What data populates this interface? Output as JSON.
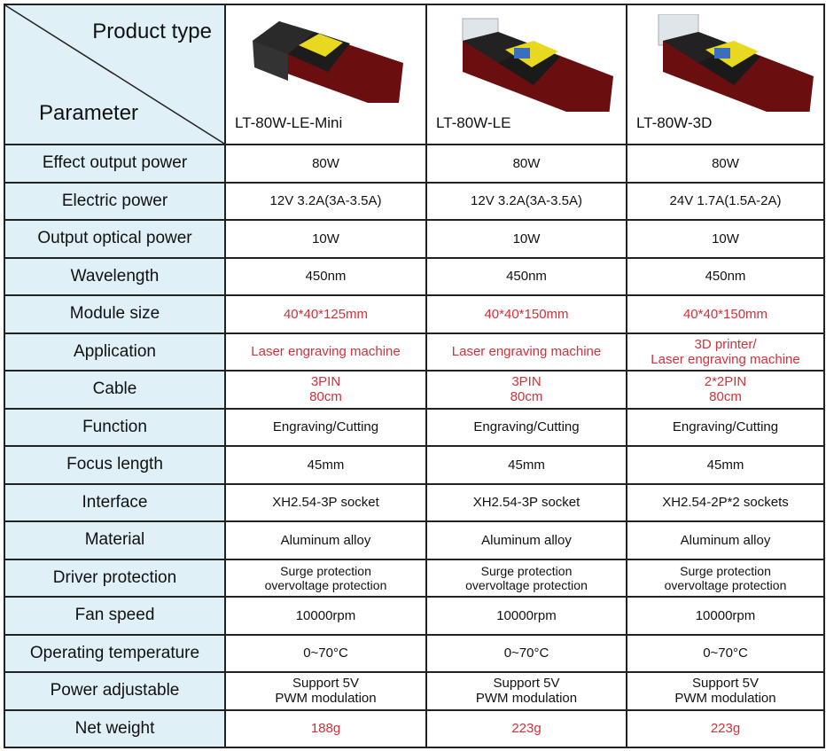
{
  "header": {
    "product_type_label": "Product type",
    "parameter_label": "Parameter"
  },
  "products": [
    {
      "name": "LT-80W-LE-Mini",
      "image": "laser-module-mini"
    },
    {
      "name": "LT-80W-LE",
      "image": "laser-module"
    },
    {
      "name": "LT-80W-3D",
      "image": "laser-module-3d"
    }
  ],
  "colors": {
    "parameter_bg": "#dff0f6",
    "highlight": "#d3303a",
    "border": "#222222"
  },
  "rows": [
    {
      "param": "Effect output power",
      "values": [
        "80W",
        "80W",
        "80W"
      ]
    },
    {
      "param": "Electric power",
      "values": [
        "12V 3.2A(3A-3.5A)",
        "12V 3.2A(3A-3.5A)",
        "24V 1.7A(1.5A-2A)"
      ]
    },
    {
      "param": "Output optical power",
      "values": [
        "10W",
        "10W",
        "10W"
      ]
    },
    {
      "param": "Wavelength",
      "values": [
        "450nm",
        "450nm",
        "450nm"
      ]
    },
    {
      "param": "Module size",
      "values": [
        "40*40*125mm",
        "40*40*150mm",
        "40*40*150mm"
      ],
      "red": true
    },
    {
      "param": "Application",
      "values": [
        "Laser engraving machine",
        "Laser engraving machine",
        "3D printer/\nLaser engraving machine"
      ],
      "red": true
    },
    {
      "param": "Cable",
      "values": [
        "3PIN\n80cm",
        "3PIN\n80cm",
        "2*2PIN\n80cm"
      ],
      "red": true
    },
    {
      "param": "Function",
      "values": [
        "Engraving/Cutting",
        "Engraving/Cutting",
        "Engraving/Cutting"
      ]
    },
    {
      "param": "Focus length",
      "values": [
        "45mm",
        "45mm",
        "45mm"
      ]
    },
    {
      "param": "Interface",
      "values": [
        "XH2.54-3P socket",
        "XH2.54-3P socket",
        "XH2.54-2P*2 sockets"
      ]
    },
    {
      "param": "Material",
      "values": [
        "Aluminum alloy",
        "Aluminum alloy",
        "Aluminum alloy"
      ]
    },
    {
      "param": "Driver protection",
      "values": [
        "Surge protection\novervoltage protection",
        "Surge protection\novervoltage protection",
        "Surge protection\novervoltage protection"
      ],
      "small": true
    },
    {
      "param": "Fan speed",
      "values": [
        "10000rpm",
        "10000rpm",
        "10000rpm"
      ]
    },
    {
      "param": "Operating temperature",
      "values": [
        "0~70°C",
        "0~70°C",
        "0~70°C"
      ]
    },
    {
      "param": "Power adjustable",
      "values": [
        "Support 5V\nPWM modulation",
        "Support 5V\nPWM modulation",
        "Support 5V\nPWM modulation"
      ]
    },
    {
      "param": "Net weight",
      "values": [
        "188g",
        "223g",
        "223g"
      ],
      "red": true
    }
  ]
}
